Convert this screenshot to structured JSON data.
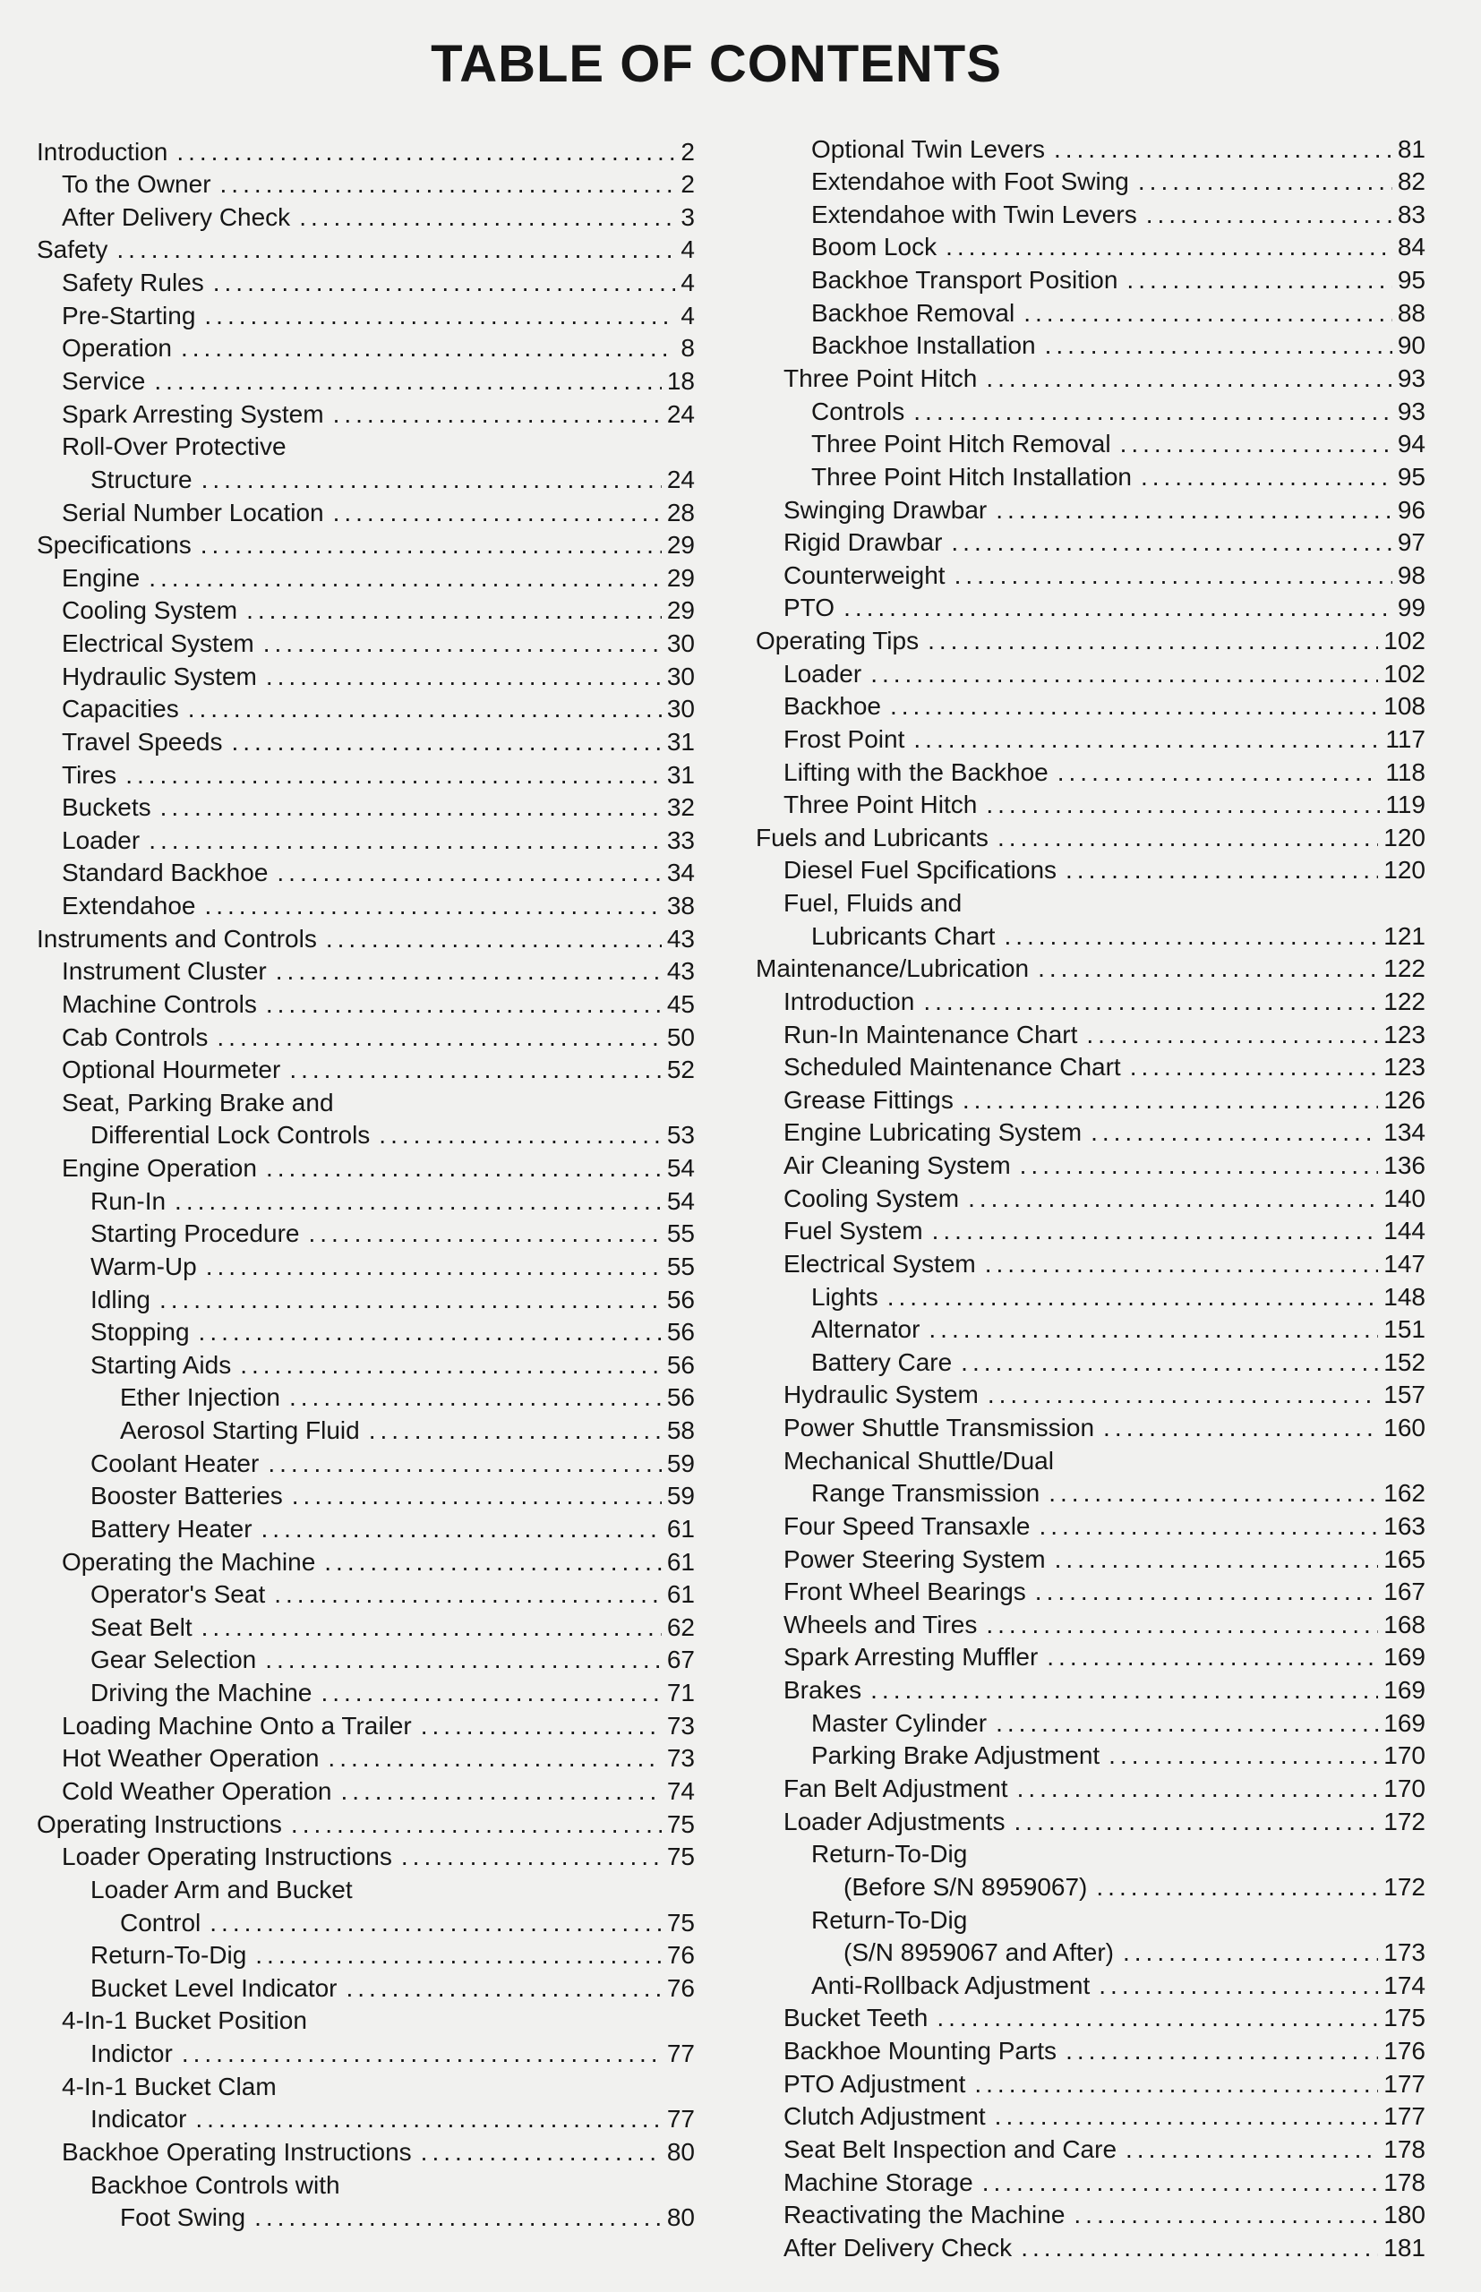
{
  "title": "TABLE OF CONTENTS",
  "left_column": [
    {
      "label": "Introduction",
      "page": "2",
      "level": 0
    },
    {
      "label": "To the Owner",
      "page": "2",
      "level": 1
    },
    {
      "label": "After Delivery Check",
      "page": "3",
      "level": 1
    },
    {
      "label": "Safety",
      "page": "4",
      "level": 0
    },
    {
      "label": "Safety Rules",
      "page": "4",
      "level": 1
    },
    {
      "label": "Pre-Starting",
      "page": "4",
      "level": 1
    },
    {
      "label": "Operation",
      "page": "8",
      "level": 1
    },
    {
      "label": "Service",
      "page": "18",
      "level": 1
    },
    {
      "label": "Spark Arresting System",
      "page": "24",
      "level": 1
    },
    {
      "label": "Roll-Over Protective",
      "page": "",
      "level": 1
    },
    {
      "label": "Structure",
      "page": "24",
      "level": 2
    },
    {
      "label": "Serial Number Location",
      "page": "28",
      "level": 1
    },
    {
      "label": "Specifications",
      "page": "29",
      "level": 0
    },
    {
      "label": "Engine",
      "page": "29",
      "level": 1
    },
    {
      "label": "Cooling System",
      "page": "29",
      "level": 1
    },
    {
      "label": "Electrical System",
      "page": "30",
      "level": 1
    },
    {
      "label": "Hydraulic System",
      "page": "30",
      "level": 1
    },
    {
      "label": "Capacities",
      "page": "30",
      "level": 1
    },
    {
      "label": "Travel Speeds",
      "page": "31",
      "level": 1
    },
    {
      "label": "Tires",
      "page": "31",
      "level": 1
    },
    {
      "label": "Buckets",
      "page": "32",
      "level": 1
    },
    {
      "label": "Loader",
      "page": "33",
      "level": 1
    },
    {
      "label": "Standard Backhoe",
      "page": "34",
      "level": 1
    },
    {
      "label": "Extendahoe",
      "page": "38",
      "level": 1
    },
    {
      "label": "Instruments and Controls",
      "page": "43",
      "level": 0
    },
    {
      "label": "Instrument Cluster",
      "page": "43",
      "level": 1
    },
    {
      "label": "Machine Controls",
      "page": "45",
      "level": 1
    },
    {
      "label": "Cab Controls",
      "page": "50",
      "level": 1
    },
    {
      "label": "Optional Hourmeter",
      "page": "52",
      "level": 1
    },
    {
      "label": "Seat, Parking Brake and",
      "page": "",
      "level": 1
    },
    {
      "label": "Differential Lock Controls",
      "page": "53",
      "level": 2
    },
    {
      "label": "Engine Operation",
      "page": "54",
      "level": 1
    },
    {
      "label": "Run-In",
      "page": "54",
      "level": 2
    },
    {
      "label": "Starting Procedure",
      "page": "55",
      "level": 2
    },
    {
      "label": "Warm-Up",
      "page": "55",
      "level": 2
    },
    {
      "label": "Idling",
      "page": "56",
      "level": 2
    },
    {
      "label": "Stopping",
      "page": "56",
      "level": 2
    },
    {
      "label": "Starting Aids",
      "page": "56",
      "level": 2
    },
    {
      "label": "Ether Injection",
      "page": "56",
      "level": 3
    },
    {
      "label": "Aerosol Starting Fluid",
      "page": "58",
      "level": 3
    },
    {
      "label": "Coolant Heater",
      "page": "59",
      "level": 2
    },
    {
      "label": "Booster Batteries",
      "page": "59",
      "level": 2
    },
    {
      "label": "Battery Heater",
      "page": "61",
      "level": 2
    },
    {
      "label": "Operating the Machine",
      "page": "61",
      "level": 1
    },
    {
      "label": "Operator's Seat",
      "page": "61",
      "level": 2
    },
    {
      "label": "Seat Belt",
      "page": "62",
      "level": 2
    },
    {
      "label": "Gear Selection",
      "page": "67",
      "level": 2
    },
    {
      "label": "Driving the Machine",
      "page": "71",
      "level": 2
    },
    {
      "label": "Loading Machine Onto a Trailer",
      "page": "73",
      "level": 1
    },
    {
      "label": "Hot Weather Operation",
      "page": "73",
      "level": 1
    },
    {
      "label": "Cold Weather Operation",
      "page": "74",
      "level": 1
    },
    {
      "label": "Operating Instructions",
      "page": "75",
      "level": 0
    },
    {
      "label": "Loader Operating Instructions",
      "page": "75",
      "level": 1
    },
    {
      "label": "Loader Arm and Bucket",
      "page": "",
      "level": 2
    },
    {
      "label": "Control",
      "page": "75",
      "level": 3
    },
    {
      "label": "Return-To-Dig",
      "page": "76",
      "level": 2
    },
    {
      "label": "Bucket Level Indicator",
      "page": "76",
      "level": 2
    },
    {
      "label": "4-In-1 Bucket Position",
      "page": "",
      "level": 1
    },
    {
      "label": "Indictor",
      "page": "77",
      "level": 2
    },
    {
      "label": "4-In-1 Bucket Clam",
      "page": "",
      "level": 1
    },
    {
      "label": "Indicator",
      "page": "77",
      "level": 2
    },
    {
      "label": "Backhoe Operating Instructions",
      "page": "80",
      "level": 1
    },
    {
      "label": "Backhoe Controls with",
      "page": "",
      "level": 2
    },
    {
      "label": "Foot Swing",
      "page": "80",
      "level": 3
    }
  ],
  "right_column": [
    {
      "label": "Optional Twin Levers",
      "page": "81",
      "level": 2
    },
    {
      "label": "Extendahoe with Foot Swing",
      "page": "82",
      "level": 2
    },
    {
      "label": "Extendahoe with Twin Levers",
      "page": "83",
      "level": 2
    },
    {
      "label": "Boom Lock",
      "page": "84",
      "level": 2
    },
    {
      "label": "Backhoe Transport Position",
      "page": "95",
      "level": 2
    },
    {
      "label": "Backhoe Removal",
      "page": "88",
      "level": 2
    },
    {
      "label": "Backhoe Installation",
      "page": "90",
      "level": 2
    },
    {
      "label": "Three Point Hitch",
      "page": "93",
      "level": 1
    },
    {
      "label": "Controls",
      "page": "93",
      "level": 2
    },
    {
      "label": "Three Point Hitch Removal",
      "page": "94",
      "level": 2
    },
    {
      "label": "Three Point Hitch Installation",
      "page": "95",
      "level": 2
    },
    {
      "label": "Swinging Drawbar",
      "page": "96",
      "level": 1
    },
    {
      "label": "Rigid Drawbar",
      "page": "97",
      "level": 1
    },
    {
      "label": "Counterweight",
      "page": "98",
      "level": 1
    },
    {
      "label": "PTO",
      "page": "99",
      "level": 1
    },
    {
      "label": "Operating Tips",
      "page": "102",
      "level": 0
    },
    {
      "label": "Loader",
      "page": "102",
      "level": 1
    },
    {
      "label": "Backhoe",
      "page": "108",
      "level": 1
    },
    {
      "label": "Frost Point",
      "page": "117",
      "level": 1
    },
    {
      "label": "Lifting with the Backhoe",
      "page": "118",
      "level": 1
    },
    {
      "label": "Three Point Hitch",
      "page": "119",
      "level": 1
    },
    {
      "label": "Fuels and Lubricants",
      "page": "120",
      "level": 0
    },
    {
      "label": "Diesel Fuel Spcifications",
      "page": "120",
      "level": 1
    },
    {
      "label": "Fuel, Fluids and",
      "page": "",
      "level": 1
    },
    {
      "label": "Lubricants Chart",
      "page": "121",
      "level": 2
    },
    {
      "label": "Maintenance/Lubrication",
      "page": "122",
      "level": 0
    },
    {
      "label": "Introduction",
      "page": "122",
      "level": 1
    },
    {
      "label": "Run-In Maintenance Chart",
      "page": "123",
      "level": 1
    },
    {
      "label": "Scheduled Maintenance Chart",
      "page": "123",
      "level": 1
    },
    {
      "label": "Grease Fittings",
      "page": "126",
      "level": 1
    },
    {
      "label": "Engine Lubricating System",
      "page": "134",
      "level": 1
    },
    {
      "label": "Air Cleaning System",
      "page": "136",
      "level": 1
    },
    {
      "label": "Cooling System",
      "page": "140",
      "level": 1
    },
    {
      "label": "Fuel System",
      "page": "144",
      "level": 1
    },
    {
      "label": "Electrical System",
      "page": "147",
      "level": 1
    },
    {
      "label": "Lights",
      "page": "148",
      "level": 2
    },
    {
      "label": "Alternator",
      "page": "151",
      "level": 2
    },
    {
      "label": "Battery Care",
      "page": "152",
      "level": 2
    },
    {
      "label": "Hydraulic System",
      "page": "157",
      "level": 1
    },
    {
      "label": "Power Shuttle Transmission",
      "page": "160",
      "level": 1
    },
    {
      "label": "Mechanical Shuttle/Dual",
      "page": "",
      "level": 1
    },
    {
      "label": "Range Transmission",
      "page": "162",
      "level": 2
    },
    {
      "label": "Four Speed Transaxle",
      "page": "163",
      "level": 1
    },
    {
      "label": "Power Steering System",
      "page": "165",
      "level": 1
    },
    {
      "label": "Front Wheel Bearings",
      "page": "167",
      "level": 1
    },
    {
      "label": "Wheels and Tires",
      "page": "168",
      "level": 1
    },
    {
      "label": "Spark Arresting Muffler",
      "page": "169",
      "level": 1
    },
    {
      "label": "Brakes",
      "page": "169",
      "level": 1
    },
    {
      "label": "Master Cylinder",
      "page": "169",
      "level": 2
    },
    {
      "label": "Parking Brake Adjustment",
      "page": "170",
      "level": 2
    },
    {
      "label": "Fan Belt Adjustment",
      "page": "170",
      "level": 1
    },
    {
      "label": "Loader Adjustments",
      "page": "172",
      "level": 1
    },
    {
      "label": "Return-To-Dig",
      "page": "",
      "level": 2
    },
    {
      "label": "(Before S/N 8959067)",
      "page": "172",
      "level": 3
    },
    {
      "label": "Return-To-Dig",
      "page": "",
      "level": 2
    },
    {
      "label": "(S/N 8959067 and After)",
      "page": "173",
      "level": 3
    },
    {
      "label": "Anti-Rollback Adjustment",
      "page": "174",
      "level": 2
    },
    {
      "label": "Bucket Teeth",
      "page": "175",
      "level": 1
    },
    {
      "label": "Backhoe Mounting Parts",
      "page": "176",
      "level": 1
    },
    {
      "label": "PTO Adjustment",
      "page": "177",
      "level": 1
    },
    {
      "label": "Clutch Adjustment",
      "page": "177",
      "level": 1
    },
    {
      "label": "Seat Belt Inspection and Care",
      "page": "178",
      "level": 1
    },
    {
      "label": "Machine Storage",
      "page": "178",
      "level": 1
    },
    {
      "label": "Reactivating the Machine",
      "page": "180",
      "level": 1
    },
    {
      "label": "After Delivery Check",
      "page": "181",
      "level": 1
    }
  ]
}
